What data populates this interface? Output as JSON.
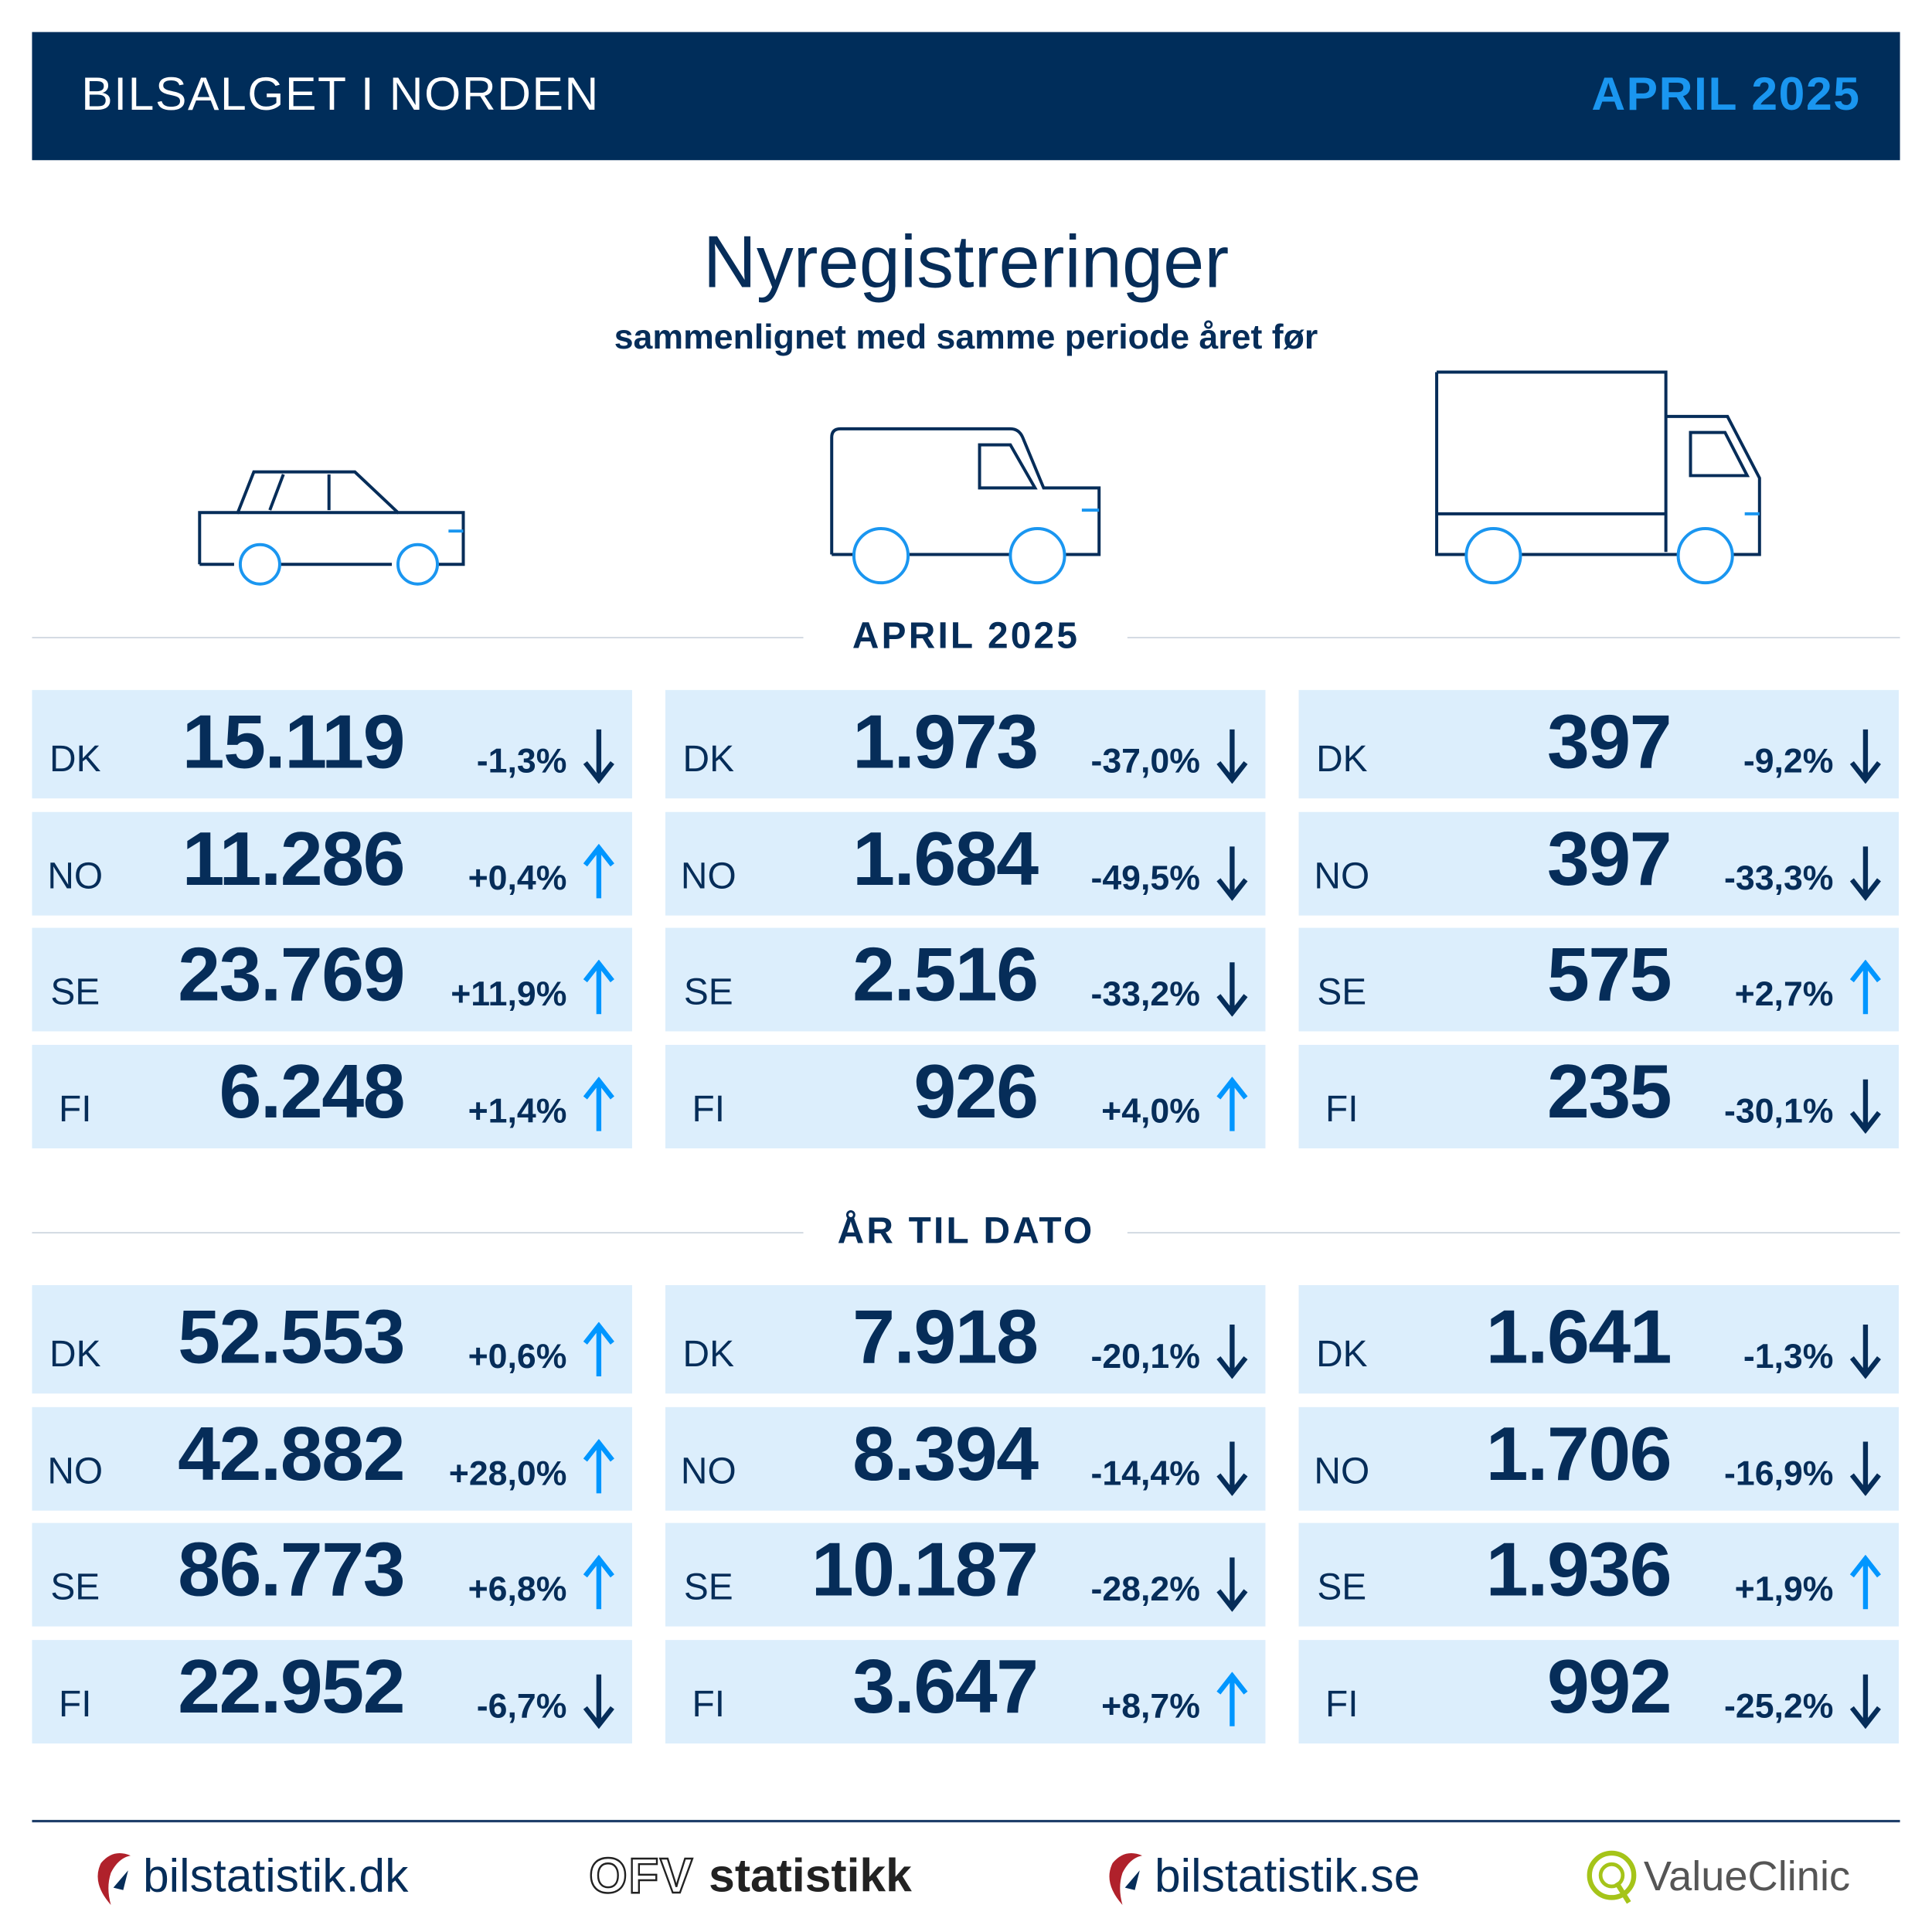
{
  "header": {
    "title": "BILSALGET I NORDEN",
    "period": "APRIL 2025"
  },
  "title": "Nyregistreringer",
  "subtitle": "sammenlignet med samme periode året før",
  "colors": {
    "navy": "#002d5a",
    "light": "#dceefc",
    "up": "#0096ff",
    "down": "#062d59"
  },
  "sections": [
    {
      "label": "APRIL 2025",
      "columns": [
        [
          {
            "c": "DK",
            "n": "15.119",
            "p": "-1,3%",
            "dir": "down"
          },
          {
            "c": "NO",
            "n": "11.286",
            "p": "+0,4%",
            "dir": "up"
          },
          {
            "c": "SE",
            "n": "23.769",
            "p": "+11,9%",
            "dir": "up"
          },
          {
            "c": "FI",
            "n": "6.248",
            "p": "+1,4%",
            "dir": "up"
          }
        ],
        [
          {
            "c": "DK",
            "n": "1.973",
            "p": "-37,0%",
            "dir": "down"
          },
          {
            "c": "NO",
            "n": "1.684",
            "p": "-49,5%",
            "dir": "down"
          },
          {
            "c": "SE",
            "n": "2.516",
            "p": "-33,2%",
            "dir": "down"
          },
          {
            "c": "FI",
            "n": "926",
            "p": "+4,0%",
            "dir": "up"
          }
        ],
        [
          {
            "c": "DK",
            "n": "397",
            "p": "-9,2%",
            "dir": "down"
          },
          {
            "c": "NO",
            "n": "397",
            "p": "-33,3%",
            "dir": "down"
          },
          {
            "c": "SE",
            "n": "575",
            "p": "+2,7%",
            "dir": "up"
          },
          {
            "c": "FI",
            "n": "235",
            "p": "-30,1%",
            "dir": "down"
          }
        ]
      ]
    },
    {
      "label": "ÅR TIL DATO",
      "columns": [
        [
          {
            "c": "DK",
            "n": "52.553",
            "p": "+0,6%",
            "dir": "up"
          },
          {
            "c": "NO",
            "n": "42.882",
            "p": "+28,0%",
            "dir": "up"
          },
          {
            "c": "SE",
            "n": "86.773",
            "p": "+6,8%",
            "dir": "up"
          },
          {
            "c": "FI",
            "n": "22.952",
            "p": "-6,7%",
            "dir": "down"
          }
        ],
        [
          {
            "c": "DK",
            "n": "7.918",
            "p": "-20,1%",
            "dir": "down"
          },
          {
            "c": "NO",
            "n": "8.394",
            "p": "-14,4%",
            "dir": "down"
          },
          {
            "c": "SE",
            "n": "10.187",
            "p": "-28,2%",
            "dir": "down"
          },
          {
            "c": "FI",
            "n": "3.647",
            "p": "+8,7%",
            "dir": "up"
          }
        ],
        [
          {
            "c": "DK",
            "n": "1.641",
            "p": "-1,3%",
            "dir": "down"
          },
          {
            "c": "NO",
            "n": "1.706",
            "p": "-16,9%",
            "dir": "down"
          },
          {
            "c": "SE",
            "n": "1.936",
            "p": "+1,9%",
            "dir": "up"
          },
          {
            "c": "FI",
            "n": "992",
            "p": "-25,2%",
            "dir": "down"
          }
        ]
      ]
    }
  ],
  "footer": {
    "logos": [
      "bilstatistik.dk",
      "statistikk",
      "bilstatistik.se",
      "ValueClinic"
    ],
    "ofv_mark": "OFV"
  }
}
